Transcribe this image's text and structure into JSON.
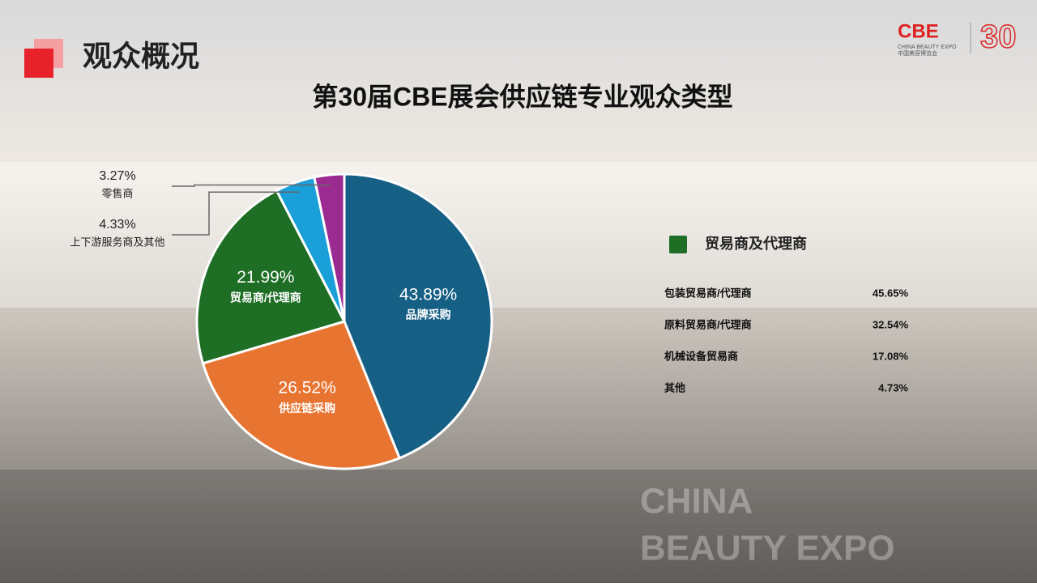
{
  "header": {
    "title": "观众概况",
    "logo": {
      "brand": "CBE",
      "english": "CHINA BEAUTY EXPO",
      "chinese": "中国美容博览会",
      "edition": "30"
    }
  },
  "watermark": [
    "CHINA",
    "BEAUTY EXPO"
  ],
  "chart_data": {
    "type": "pie",
    "title": "第30届CBE展会供应链专业观众类型",
    "categories": [
      "品牌采购",
      "供应链采购",
      "贸易商/代理商",
      "上下游服务商及其他",
      "零售商"
    ],
    "values": [
      43.89,
      26.52,
      21.99,
      4.33,
      3.27
    ],
    "value_labels": [
      "43.89%",
      "26.52%",
      "21.99%",
      "4.33%",
      "3.27%"
    ],
    "colors": [
      "#165f85",
      "#e87431",
      "#1e6e25",
      "#1a9fd8",
      "#9b2a91"
    ]
  },
  "breakdown": {
    "title": "贸易商及代理商",
    "color": "#1e6e25",
    "rows": [
      {
        "name": "包装贸易商/代理商",
        "value": "45.65%"
      },
      {
        "name": "原料贸易商/代理商",
        "value": "32.54%"
      },
      {
        "name": "机械设备贸易商",
        "value": "17.08%"
      },
      {
        "name": "其他",
        "value": "4.73%"
      }
    ]
  }
}
